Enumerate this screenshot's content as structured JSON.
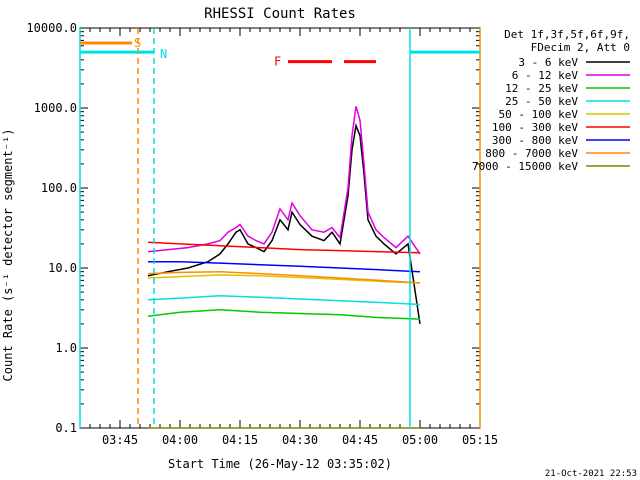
{
  "chart_data": {
    "type": "line",
    "title": "RHESSI Count Rates",
    "xlabel": "Start Time (26-May-12 03:35:02)",
    "ylabel": "Count Rate (s⁻¹ detector segment⁻¹)",
    "yscale": "log",
    "ylim": [
      0.1,
      10000
    ],
    "xlim_minutes": [
      0,
      100
    ],
    "x_ticks": [
      {
        "label": "03:45",
        "minute": 10
      },
      {
        "label": "04:00",
        "minute": 25
      },
      {
        "label": "04:15",
        "minute": 40
      },
      {
        "label": "04:30",
        "minute": 55
      },
      {
        "label": "04:45",
        "minute": 70
      },
      {
        "label": "05:00",
        "minute": 85
      },
      {
        "label": "05:15",
        "minute": 100
      }
    ],
    "y_ticks": [
      {
        "label": "0.1",
        "value": 0.1
      },
      {
        "label": "1.0",
        "value": 1
      },
      {
        "label": "10.0",
        "value": 10
      },
      {
        "label": "100.0",
        "value": 100
      },
      {
        "label": "1000.0",
        "value": 1000
      },
      {
        "label": "10000.0",
        "value": 10000
      }
    ],
    "legend": {
      "header": [
        "Det 1f,3f,5f,6f,9f,",
        "FDecim 2, Att 0"
      ],
      "placement": "right"
    },
    "series": [
      {
        "name": "3 - 6 keV",
        "color": "#000000",
        "x": [
          17,
          22,
          27,
          32,
          35,
          37,
          39,
          40,
          42,
          44,
          46,
          48,
          50,
          52,
          53,
          55,
          58,
          61,
          63,
          65,
          67,
          68,
          69,
          70,
          71,
          72,
          74,
          76,
          79,
          82,
          85
        ],
        "y": [
          8,
          9,
          10,
          12,
          15,
          20,
          28,
          30,
          20,
          18,
          16,
          22,
          40,
          30,
          50,
          35,
          25,
          22,
          28,
          20,
          80,
          300,
          600,
          450,
          150,
          40,
          25,
          20,
          15,
          20,
          2
        ]
      },
      {
        "name": "6 - 12 keV",
        "color": "#e000e0",
        "x": [
          17,
          22,
          27,
          32,
          35,
          37,
          39,
          40,
          42,
          44,
          46,
          48,
          50,
          52,
          53,
          55,
          58,
          61,
          63,
          65,
          67,
          68,
          69,
          70,
          71,
          72,
          74,
          76,
          79,
          82,
          85
        ],
        "y": [
          16,
          17,
          18,
          20,
          22,
          28,
          32,
          35,
          25,
          22,
          20,
          28,
          55,
          40,
          65,
          45,
          30,
          28,
          32,
          24,
          100,
          450,
          1050,
          700,
          200,
          50,
          30,
          24,
          18,
          25,
          15
        ]
      },
      {
        "name": "12 - 25 keV",
        "color": "#00cc00",
        "x": [
          17,
          25,
          35,
          45,
          55,
          65,
          75,
          85
        ],
        "y": [
          2.5,
          2.8,
          3.0,
          2.8,
          2.7,
          2.6,
          2.4,
          2.3
        ]
      },
      {
        "name": "25 - 50 keV",
        "color": "#00e0e0",
        "x": [
          17,
          25,
          35,
          45,
          55,
          65,
          75,
          85
        ],
        "y": [
          4.0,
          4.2,
          4.5,
          4.3,
          4.1,
          3.9,
          3.7,
          3.5
        ]
      },
      {
        "name": "50 - 100 keV",
        "color": "#e0c000",
        "x": [
          17,
          25,
          35,
          45,
          55,
          65,
          75,
          85
        ],
        "y": [
          7.5,
          7.8,
          8.2,
          8.0,
          7.6,
          7.2,
          6.8,
          6.5
        ]
      },
      {
        "name": "100 - 300 keV",
        "color": "#ff0000",
        "x": [
          17,
          25,
          35,
          45,
          55,
          65,
          75,
          85
        ],
        "y": [
          21,
          20,
          19,
          18,
          17,
          16.5,
          16,
          15.5
        ]
      },
      {
        "name": "300 - 800 keV",
        "color": "#0000ff",
        "x": [
          17,
          25,
          35,
          45,
          55,
          65,
          75,
          85
        ],
        "y": [
          12,
          12,
          11.5,
          11,
          10.5,
          10,
          9.5,
          9
        ]
      },
      {
        "name": "800 - 7000 keV",
        "color": "#ff8c00",
        "x": [
          17,
          25,
          35,
          45,
          55,
          65,
          75,
          85
        ],
        "y": [
          8.5,
          8.8,
          9.0,
          8.5,
          8.0,
          7.5,
          7.0,
          6.5
        ]
      },
      {
        "name": "7000 - 15000 keV",
        "color": "#808000",
        "x": [
          17,
          85
        ],
        "y": [
          0.1,
          0.1
        ]
      }
    ],
    "attenuator_bars": {
      "name": "S",
      "color": "#ff8c00",
      "x": [
        0,
        14.5
      ],
      "y": 6500
    },
    "night_bars": {
      "name": "N",
      "color": "#00e0e0",
      "segments": [
        {
          "x": [
            0,
            18.5
          ],
          "y": 5000
        },
        {
          "x": [
            82.5,
            100
          ],
          "y": 5000
        }
      ]
    },
    "flare_flag": {
      "name": "F",
      "color": "#ff0000",
      "segments": [
        {
          "x": [
            52,
            63
          ],
          "y": 3800
        },
        {
          "x": [
            66,
            74
          ],
          "y": 3800
        }
      ]
    },
    "vertical_lines": [
      {
        "minute": 0,
        "color": "#00e0e0",
        "style": "solid"
      },
      {
        "minute": 14.5,
        "color": "#ff8c00",
        "style": "dashed"
      },
      {
        "minute": 18.5,
        "color": "#00e0e0",
        "style": "dashed"
      },
      {
        "minute": 82.5,
        "color": "#00e0e0",
        "style": "solid"
      },
      {
        "minute": 100,
        "color": "#ff8c00",
        "style": "solid"
      }
    ]
  },
  "footer": {
    "timestamp": "21-Oct-2021 22:53"
  }
}
